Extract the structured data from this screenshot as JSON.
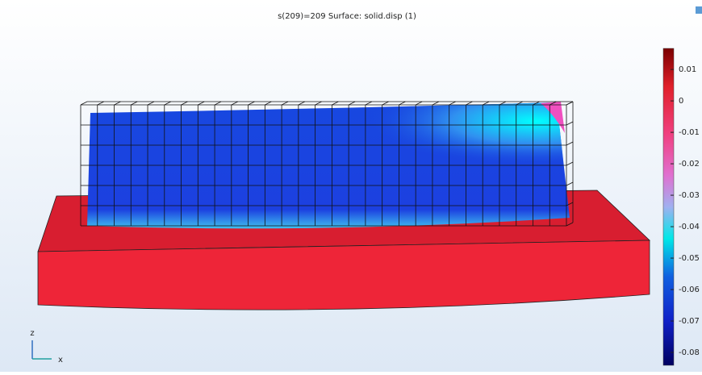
{
  "title": "s(209)=209   Surface: solid.disp (1)",
  "colorbar": {
    "lim": [
      -0.0841,
      0.0167
    ],
    "ticks": [
      0.01,
      0,
      -0.01,
      -0.02,
      -0.03,
      -0.04,
      -0.05,
      -0.06,
      -0.07,
      -0.08
    ]
  },
  "axes": {
    "z": "z",
    "x": "x"
  }
}
